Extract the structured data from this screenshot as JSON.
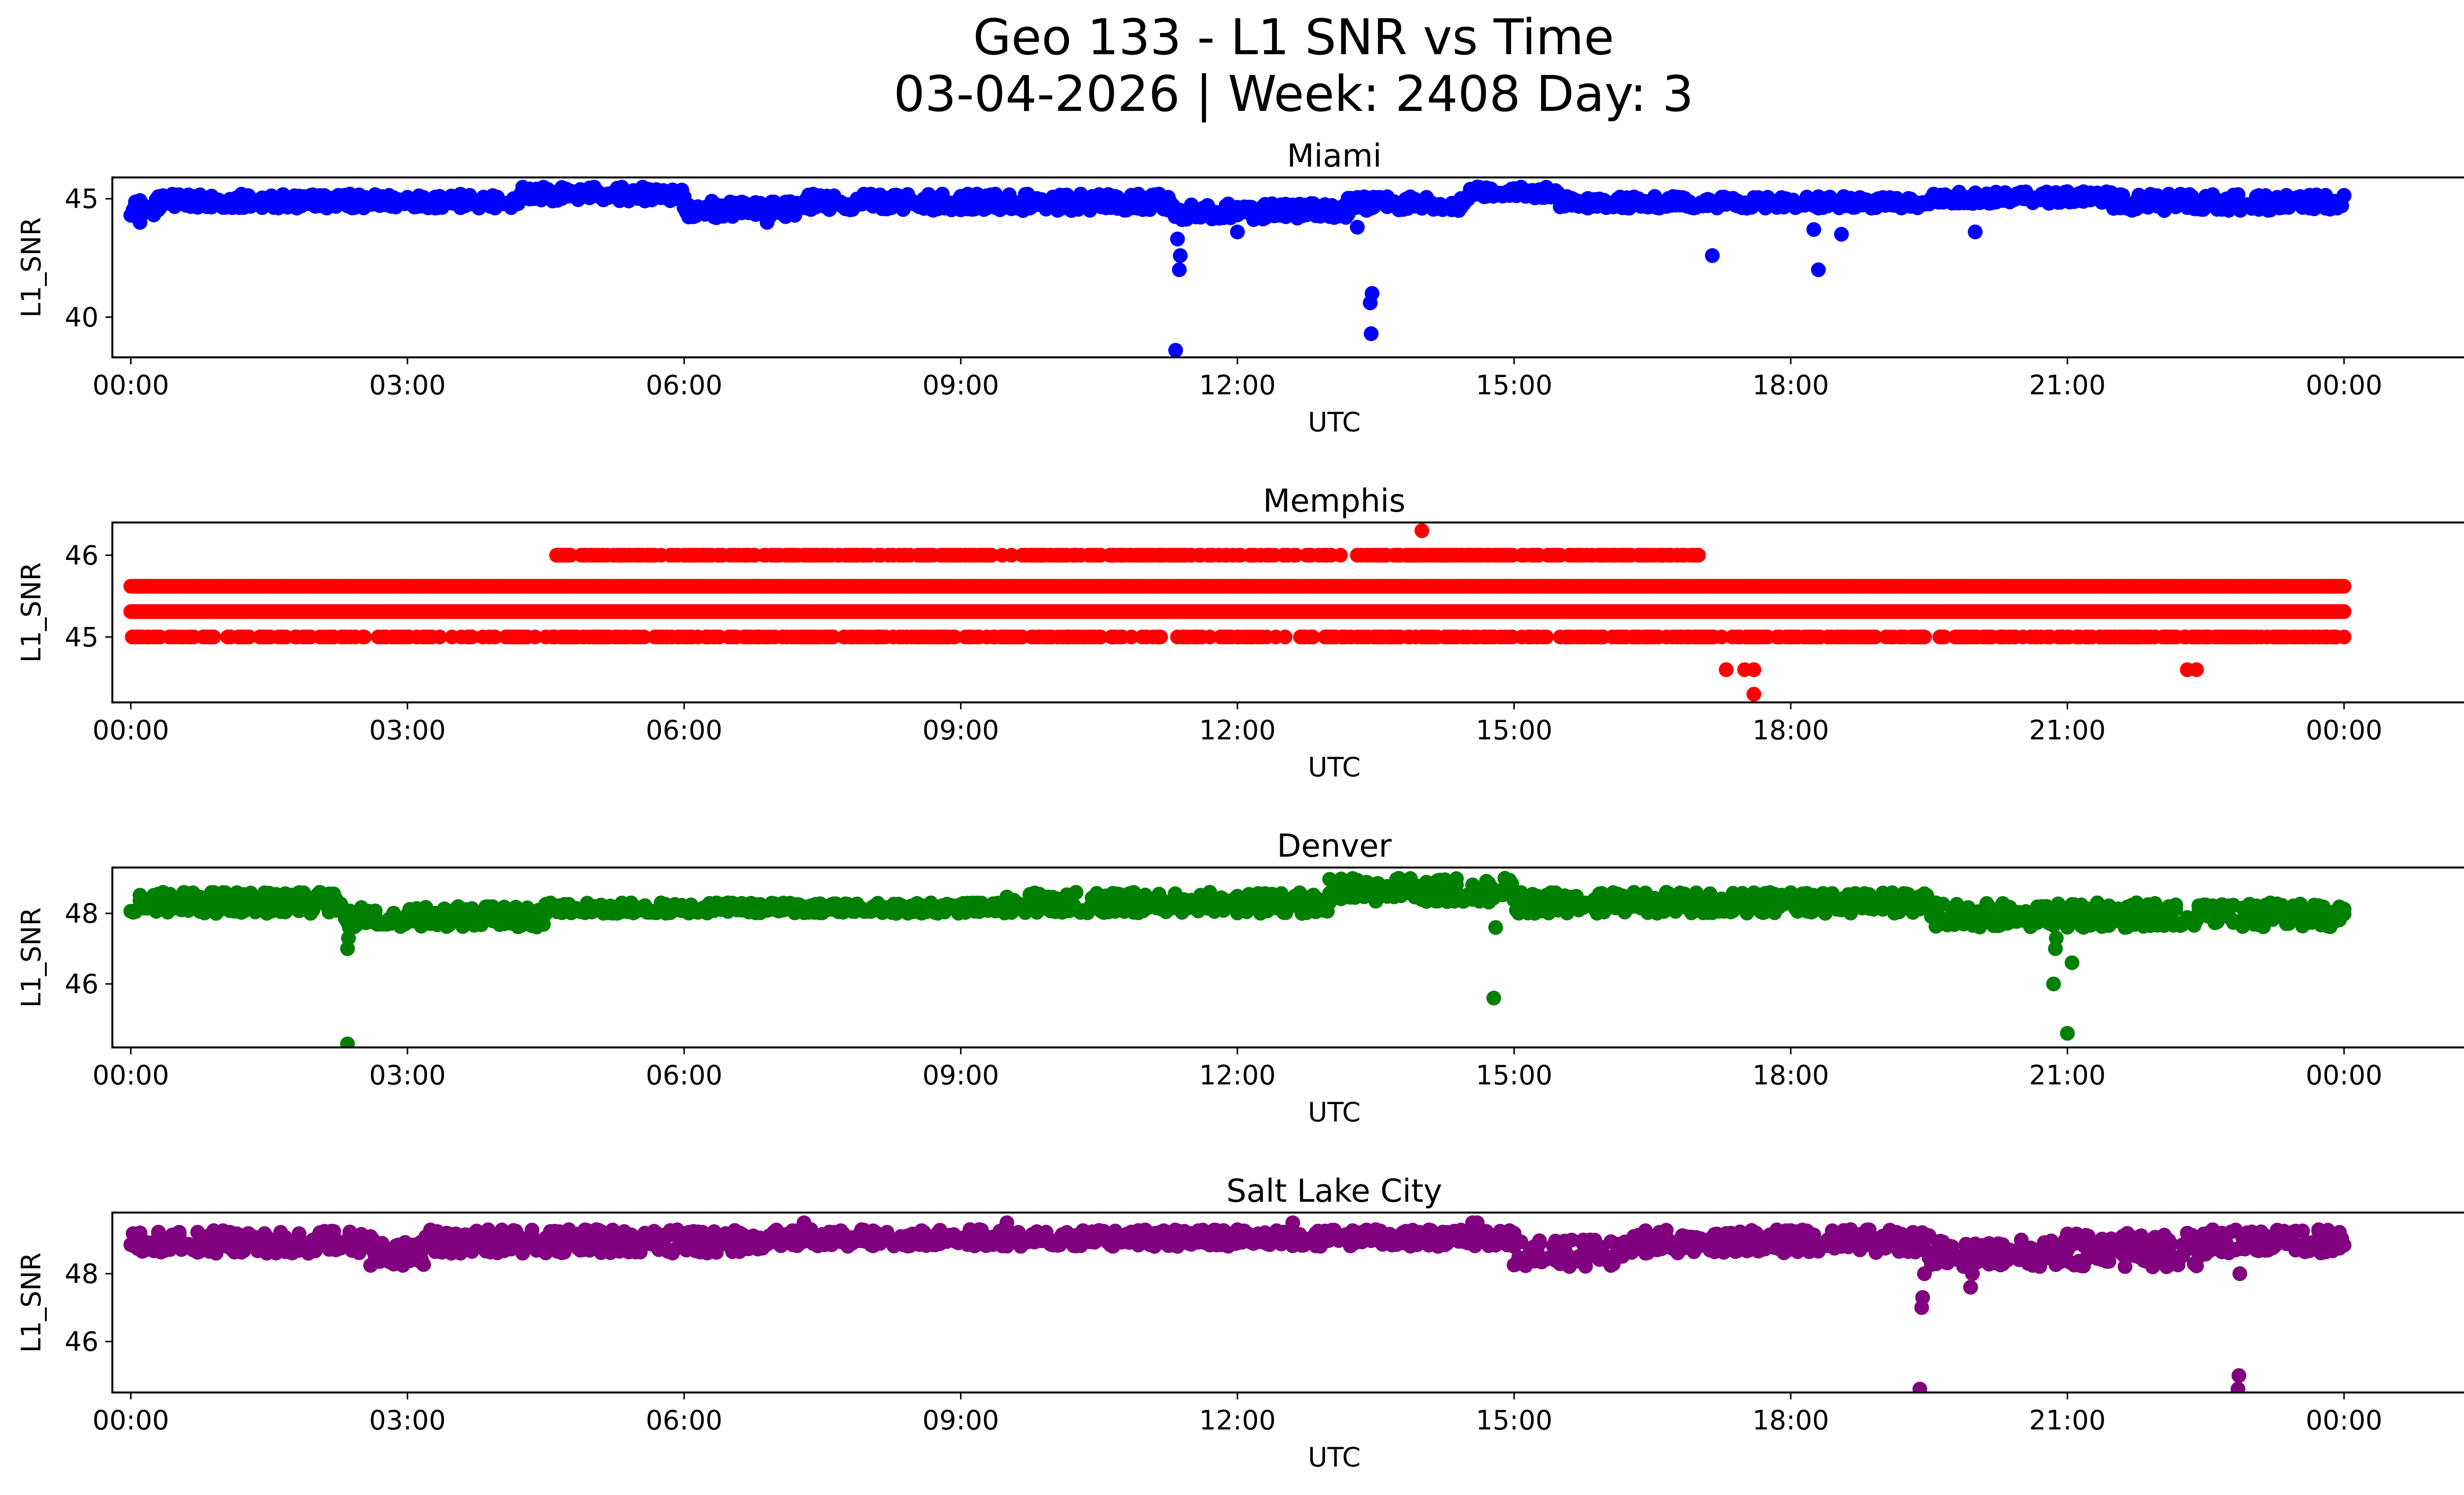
{
  "title_line1": "Geo 133 - L1 SNR vs Time",
  "title_line2": "03-04-2026 | Week: 2408 Day: 3",
  "chart_data": [
    {
      "type": "scatter",
      "title": "Miami",
      "xlabel": "UTC",
      "ylabel": "L1_SNR",
      "color": "#0000ff",
      "xlim": [
        -0.2,
        26.3
      ],
      "ylim": [
        38.3,
        45.9
      ],
      "x_ticks": [
        "00:00",
        "03:00",
        "06:00",
        "09:00",
        "12:00",
        "15:00",
        "18:00",
        "21:00",
        "00:00"
      ],
      "y_ticks": [
        "40",
        "45"
      ],
      "bands": [
        {
          "x": [
            0,
            0.3
          ],
          "y": [
            44.3,
            45.0
          ]
        },
        {
          "x": [
            0.3,
            4.2
          ],
          "y": [
            44.6,
            45.2
          ]
        },
        {
          "x": [
            4.2,
            6.0
          ],
          "y": [
            44.9,
            45.5
          ]
        },
        {
          "x": [
            6.0,
            7.2
          ],
          "y": [
            44.2,
            44.9
          ]
        },
        {
          "x": [
            7.2,
            11.3
          ],
          "y": [
            44.5,
            45.2
          ]
        },
        {
          "x": [
            11.3,
            13.2
          ],
          "y": [
            44.1,
            44.8
          ]
        },
        {
          "x": [
            13.2,
            14.5
          ],
          "y": [
            44.5,
            45.1
          ]
        },
        {
          "x": [
            14.5,
            15.5
          ],
          "y": [
            45.0,
            45.5
          ]
        },
        {
          "x": [
            15.5,
            19.5
          ],
          "y": [
            44.6,
            45.1
          ]
        },
        {
          "x": [
            19.5,
            21.5
          ],
          "y": [
            44.8,
            45.3
          ]
        },
        {
          "x": [
            21.5,
            24.0
          ],
          "y": [
            44.5,
            45.2
          ]
        }
      ],
      "outliers": [
        [
          11.33,
          38.6
        ],
        [
          11.37,
          42.0
        ],
        [
          11.38,
          42.6
        ],
        [
          11.35,
          43.3
        ],
        [
          13.45,
          39.3
        ],
        [
          13.44,
          40.6
        ],
        [
          13.46,
          41.0
        ],
        [
          17.15,
          42.6
        ],
        [
          18.3,
          42.0
        ],
        [
          18.55,
          43.5
        ],
        [
          20.0,
          43.6
        ],
        [
          12.0,
          43.6
        ],
        [
          0.1,
          44.0
        ],
        [
          6.9,
          44.0
        ],
        [
          18.25,
          43.7
        ],
        [
          13.3,
          43.8
        ]
      ]
    },
    {
      "type": "scatter",
      "title": "Memphis",
      "xlabel": "UTC",
      "ylabel": "L1_SNR",
      "color": "#ff0000",
      "xlim": [
        -0.2,
        26.3
      ],
      "ylim": [
        44.2,
        46.4
      ],
      "x_ticks": [
        "00:00",
        "03:00",
        "06:00",
        "09:00",
        "12:00",
        "15:00",
        "18:00",
        "21:00",
        "00:00"
      ],
      "y_ticks": [
        "45",
        "46"
      ],
      "levels": [
        {
          "y": 45.62,
          "x": [
            0,
            24
          ]
        },
        {
          "y": 45.31,
          "x": [
            0,
            24
          ]
        },
        {
          "y": 46.0,
          "x": [
            4.6,
            17.0
          ]
        },
        {
          "y": 45.0,
          "x": [
            0,
            24
          ]
        }
      ],
      "outliers": [
        [
          14.0,
          46.3
        ],
        [
          17.3,
          44.6
        ],
        [
          17.5,
          44.6
        ],
        [
          17.6,
          44.6
        ],
        [
          17.6,
          44.3
        ],
        [
          22.3,
          44.6
        ],
        [
          22.4,
          44.6
        ]
      ]
    },
    {
      "type": "scatter",
      "title": "Denver",
      "xlabel": "UTC",
      "ylabel": "L1_SNR",
      "color": "#008000",
      "xlim": [
        -0.2,
        26.3
      ],
      "ylim": [
        44.2,
        49.3
      ],
      "x_ticks": [
        "00:00",
        "03:00",
        "06:00",
        "09:00",
        "12:00",
        "15:00",
        "18:00",
        "21:00",
        "00:00"
      ],
      "y_ticks": [
        "46",
        "48"
      ],
      "bands": [
        {
          "x": [
            0,
            2.3
          ],
          "y": [
            48.0,
            48.6
          ]
        },
        {
          "x": [
            2.3,
            4.5
          ],
          "y": [
            47.6,
            48.2
          ]
        },
        {
          "x": [
            4.5,
            9.5
          ],
          "y": [
            48.0,
            48.3
          ]
        },
        {
          "x": [
            9.5,
            13.0
          ],
          "y": [
            48.0,
            48.6
          ]
        },
        {
          "x": [
            13.0,
            15.0
          ],
          "y": [
            48.3,
            49.0
          ]
        },
        {
          "x": [
            15.0,
            16.3
          ],
          "y": [
            48.0,
            48.6
          ]
        },
        {
          "x": [
            16.3,
            19.5
          ],
          "y": [
            48.0,
            48.6
          ]
        },
        {
          "x": [
            19.5,
            24.0
          ],
          "y": [
            47.6,
            48.3
          ]
        }
      ],
      "outliers": [
        [
          2.35,
          44.3
        ],
        [
          2.35,
          47.0
        ],
        [
          2.36,
          47.3
        ],
        [
          2.37,
          47.6
        ],
        [
          14.78,
          45.6
        ],
        [
          14.8,
          47.6
        ],
        [
          20.85,
          46.0
        ],
        [
          20.87,
          47.0
        ],
        [
          20.88,
          47.3
        ],
        [
          21.0,
          44.6
        ],
        [
          21.05,
          46.6
        ]
      ]
    },
    {
      "type": "scatter",
      "title": "Salt Lake City",
      "xlabel": "UTC",
      "ylabel": "L1_SNR",
      "color": "#800080",
      "xlim": [
        -0.2,
        26.3
      ],
      "ylim": [
        44.5,
        49.8
      ],
      "x_ticks": [
        "00:00",
        "03:00",
        "06:00",
        "09:00",
        "12:00",
        "15:00",
        "18:00",
        "21:00",
        "00:00"
      ],
      "y_ticks": [
        "46",
        "48"
      ],
      "bands": [
        {
          "x": [
            0,
            2.6
          ],
          "y": [
            48.6,
            49.3
          ]
        },
        {
          "x": [
            2.6,
            3.2
          ],
          "y": [
            48.2,
            49.0
          ]
        },
        {
          "x": [
            3.2,
            7.0
          ],
          "y": [
            48.6,
            49.3
          ]
        },
        {
          "x": [
            7.0,
            15.0
          ],
          "y": [
            48.8,
            49.3
          ]
        },
        {
          "x": [
            15.0,
            16.2
          ],
          "y": [
            48.2,
            49.0
          ]
        },
        {
          "x": [
            16.2,
            19.5
          ],
          "y": [
            48.6,
            49.3
          ]
        },
        {
          "x": [
            19.5,
            21.0
          ],
          "y": [
            48.2,
            49.0
          ]
        },
        {
          "x": [
            21.0,
            22.5
          ],
          "y": [
            48.2,
            49.2
          ]
        },
        {
          "x": [
            22.5,
            24.0
          ],
          "y": [
            48.6,
            49.3
          ]
        }
      ],
      "outliers": [
        [
          19.4,
          44.6
        ],
        [
          19.42,
          47.0
        ],
        [
          19.43,
          47.3
        ],
        [
          19.45,
          48.0
        ],
        [
          19.95,
          47.6
        ],
        [
          19.97,
          48.0
        ],
        [
          22.85,
          44.6
        ],
        [
          22.86,
          45.0
        ],
        [
          22.87,
          48.0
        ],
        [
          7.3,
          49.5
        ],
        [
          9.5,
          49.5
        ],
        [
          12.6,
          49.5
        ],
        [
          14.55,
          49.5
        ],
        [
          14.6,
          49.5
        ]
      ]
    }
  ]
}
